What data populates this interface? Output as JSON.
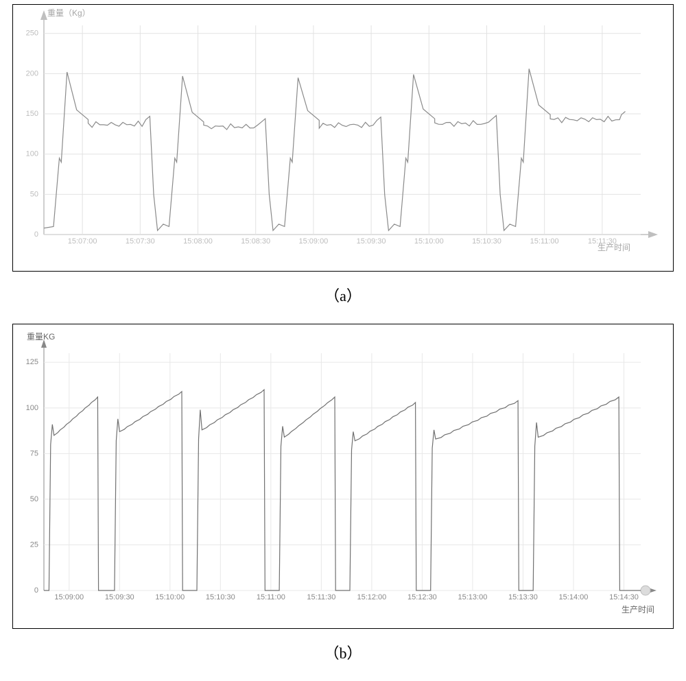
{
  "chart_a": {
    "sub_label": "（a）",
    "type": "line",
    "ylabel": "重量（Kg）",
    "xlabel": "生产时间",
    "label_color": "#a6a6a6",
    "tick_color": "#bdbdbd",
    "axis_color": "#bfbfbf",
    "grid_color": "#e2e2e2",
    "line_color": "#8a8a8a",
    "background_color": "#ffffff",
    "label_fontsize": 12,
    "tick_fontsize": 11,
    "xlim": [
      "15:06:40",
      "15:11:50"
    ],
    "ylim": [
      0,
      260
    ],
    "ytick_step": 50,
    "yticks": [
      0,
      50,
      100,
      150,
      200,
      250
    ],
    "xticks": [
      "15:07:00",
      "15:07:30",
      "15:08:00",
      "15:08:30",
      "15:09:00",
      "15:09:30",
      "15:10:00",
      "15:10:30",
      "15:11:00",
      "15:11:30"
    ],
    "x_offset_s": 0,
    "x_span_s": 310,
    "cycles": [
      {
        "start_s": 5,
        "peak": 202,
        "plateau": 137,
        "trough": 5,
        "plateau_jitter": 5
      },
      {
        "start_s": 65,
        "peak": 197,
        "plateau": 134,
        "trough": 5,
        "plateau_jitter": 5
      },
      {
        "start_s": 125,
        "peak": 195,
        "plateau": 136,
        "trough": 5,
        "plateau_jitter": 5
      },
      {
        "start_s": 185,
        "peak": 199,
        "plateau": 138,
        "trough": 5,
        "plateau_jitter": 5
      },
      {
        "start_s": 245,
        "peak": 206,
        "plateau": 143,
        "trough": 10,
        "plateau_jitter": 5
      }
    ],
    "initial_y": 8
  },
  "chart_b": {
    "sub_label": "（b）",
    "type": "line",
    "ylabel": "重量KG",
    "xlabel": "生产时间",
    "label_color": "#666666",
    "tick_color": "#888888",
    "axis_color": "#888888",
    "grid_color": "#e8e8e8",
    "line_color": "#707070",
    "background_color": "#ffffff",
    "label_fontsize": 12,
    "tick_fontsize": 11,
    "xlim": [
      "15:08:45",
      "15:14:40"
    ],
    "ylim": [
      0,
      130
    ],
    "ytick_step": 25,
    "yticks": [
      0,
      25,
      50,
      75,
      100,
      125
    ],
    "xticks": [
      "15:09:00",
      "15:09:30",
      "15:10:00",
      "15:10:30",
      "15:11:00",
      "15:11:30",
      "15:12:00",
      "15:12:30",
      "15:13:00",
      "15:13:30",
      "15:14:00",
      "15:14:30"
    ],
    "x_offset_s": 0,
    "x_span_s": 355,
    "cycles": [
      {
        "rise_s": 4,
        "spike": 91,
        "shelf": 85,
        "peak": 106,
        "end_s": 32,
        "steps": 7
      },
      {
        "rise_s": 43,
        "spike": 94,
        "shelf": 87,
        "peak": 109,
        "end_s": 82,
        "steps": 8
      },
      {
        "rise_s": 92,
        "spike": 99,
        "shelf": 88,
        "peak": 110,
        "end_s": 131,
        "steps": 8
      },
      {
        "rise_s": 141,
        "spike": 90,
        "shelf": 84,
        "peak": 106,
        "end_s": 173,
        "steps": 7
      },
      {
        "rise_s": 183,
        "spike": 87,
        "shelf": 82,
        "peak": 103,
        "end_s": 221,
        "steps": 8
      },
      {
        "rise_s": 231,
        "spike": 88,
        "shelf": 83,
        "peak": 104,
        "end_s": 282,
        "steps": 9
      },
      {
        "rise_s": 292,
        "spike": 92,
        "shelf": 84,
        "peak": 106,
        "end_s": 342,
        "steps": 9
      }
    ]
  }
}
